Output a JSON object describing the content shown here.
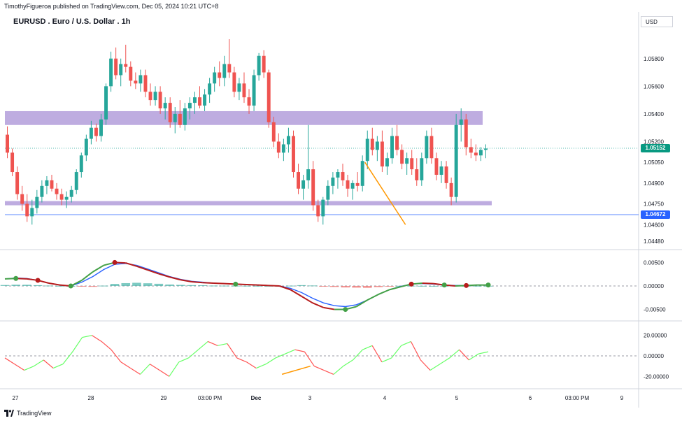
{
  "header": {
    "published": "TimothyFigueroa published on TradingView.com, Dec 05, 2024 10:21 UTC+8",
    "title": "EURUSD . Euro / U.S. Dollar . 1h",
    "currency": "USD"
  },
  "price_axis": [
    "1.05800",
    "1.05600",
    "1.05400",
    "1.05200",
    "1.05050",
    "1.04900",
    "1.04750",
    "1.04600",
    "1.04480"
  ],
  "price_tags": {
    "last": "1.05152",
    "support": "1.04672",
    "last_color": "#089981",
    "support_color": "#2962ff"
  },
  "macd_axis": [
    "0.00500",
    "0.00000",
    "-0.00500"
  ],
  "osc_axis": [
    "20.00000",
    "0.00000",
    "-20.00000"
  ],
  "time_axis": [
    "27",
    "28",
    "29",
    "03:00 PM",
    "Dec",
    "3",
    "4",
    "5",
    "6",
    "03:00 PM",
    "9"
  ],
  "footer": {
    "brand": "TradingView"
  },
  "colors": {
    "up": "#26a69a",
    "down": "#ef5350",
    "zone": "#b39ddb",
    "macd_line": "#2962ff",
    "signal_up": "#43a047",
    "signal_down": "#b71c1c",
    "osc_up": "#66ff66",
    "osc_down": "#ff5252",
    "annotation": "#ff9800"
  },
  "chart_data": {
    "type": "candlestick",
    "symbol": "EURUSD",
    "timeframe": "1h",
    "ylim": [
      1.0448,
      1.0592
    ],
    "candles": [
      [
        1.0525,
        1.0531,
        1.0508,
        1.0512
      ],
      [
        1.0512,
        1.0515,
        1.0495,
        1.0498
      ],
      [
        1.0498,
        1.0502,
        1.0478,
        1.0482
      ],
      [
        1.0482,
        1.0488,
        1.047,
        1.0475
      ],
      [
        1.0475,
        1.0482,
        1.0462,
        1.0466
      ],
      [
        1.0466,
        1.0478,
        1.046,
        1.0472
      ],
      [
        1.0472,
        1.0485,
        1.0468,
        1.048
      ],
      [
        1.048,
        1.0492,
        1.0476,
        1.0488
      ],
      [
        1.0488,
        1.0495,
        1.0482,
        1.0492
      ],
      [
        1.0492,
        1.0496,
        1.0484,
        1.0486
      ],
      [
        1.0486,
        1.049,
        1.0478,
        1.0482
      ],
      [
        1.0482,
        1.0486,
        1.0474,
        1.0478
      ],
      [
        1.0478,
        1.0484,
        1.0472,
        1.048
      ],
      [
        1.048,
        1.0488,
        1.0476,
        1.0485
      ],
      [
        1.0485,
        1.05,
        1.0482,
        1.0498
      ],
      [
        1.0498,
        1.0512,
        1.0494,
        1.051
      ],
      [
        1.051,
        1.0525,
        1.0506,
        1.0522
      ],
      [
        1.0522,
        1.0535,
        1.0518,
        1.053
      ],
      [
        1.053,
        1.0533,
        1.052,
        1.0524
      ],
      [
        1.0524,
        1.054,
        1.052,
        1.0536
      ],
      [
        1.0536,
        1.0562,
        1.0532,
        1.056
      ],
      [
        1.056,
        1.0585,
        1.0556,
        1.058
      ],
      [
        1.058,
        1.0588,
        1.0565,
        1.0568
      ],
      [
        1.0568,
        1.058,
        1.056,
        1.0576
      ],
      [
        1.0576,
        1.059,
        1.057,
        1.0574
      ],
      [
        1.0574,
        1.0578,
        1.056,
        1.0564
      ],
      [
        1.0564,
        1.057,
        1.0558,
        1.0562
      ],
      [
        1.0562,
        1.0572,
        1.0556,
        1.0568
      ],
      [
        1.0568,
        1.0572,
        1.0552,
        1.0556
      ],
      [
        1.0556,
        1.0562,
        1.0546,
        1.055
      ],
      [
        1.055,
        1.056,
        1.0546,
        1.0556
      ],
      [
        1.0556,
        1.056,
        1.054,
        1.0544
      ],
      [
        1.0544,
        1.0552,
        1.0536,
        1.0548
      ],
      [
        1.0548,
        1.0552,
        1.053,
        1.0534
      ],
      [
        1.0534,
        1.0545,
        1.0526,
        1.054
      ],
      [
        1.054,
        1.055,
        1.053,
        1.0532
      ],
      [
        1.0532,
        1.0548,
        1.0528,
        1.0544
      ],
      [
        1.0544,
        1.0552,
        1.0536,
        1.0548
      ],
      [
        1.0548,
        1.0556,
        1.054,
        1.0552
      ],
      [
        1.0552,
        1.056,
        1.0544,
        1.0546
      ],
      [
        1.0546,
        1.0558,
        1.0542,
        1.0554
      ],
      [
        1.0554,
        1.0566,
        1.0548,
        1.0562
      ],
      [
        1.0562,
        1.0574,
        1.0556,
        1.057
      ],
      [
        1.057,
        1.0578,
        1.056,
        1.0566
      ],
      [
        1.0566,
        1.0582,
        1.056,
        1.0576
      ],
      [
        1.0576,
        1.0594,
        1.0566,
        1.057
      ],
      [
        1.057,
        1.0574,
        1.0552,
        1.0556
      ],
      [
        1.0556,
        1.0566,
        1.055,
        1.0562
      ],
      [
        1.0562,
        1.057,
        1.0548,
        1.0552
      ],
      [
        1.0552,
        1.0558,
        1.054,
        1.0546
      ],
      [
        1.0546,
        1.0572,
        1.0542,
        1.0568
      ],
      [
        1.0568,
        1.0584,
        1.0564,
        1.0582
      ],
      [
        1.0582,
        1.0586,
        1.0566,
        1.057
      ],
      [
        1.057,
        1.0572,
        1.053,
        1.0534
      ],
      [
        1.0534,
        1.0538,
        1.0516,
        1.052
      ],
      [
        1.052,
        1.0526,
        1.0508,
        1.0512
      ],
      [
        1.0512,
        1.0522,
        1.0506,
        1.0518
      ],
      [
        1.0518,
        1.053,
        1.0512,
        1.0524
      ],
      [
        1.0524,
        1.0528,
        1.0494,
        1.0498
      ],
      [
        1.0498,
        1.0504,
        1.0482,
        1.0486
      ],
      [
        1.0486,
        1.0496,
        1.0478,
        1.0492
      ],
      [
        1.0492,
        1.0532,
        1.0486,
        1.05
      ],
      [
        1.05,
        1.0506,
        1.047,
        1.0474
      ],
      [
        1.0474,
        1.0478,
        1.0462,
        1.0466
      ],
      [
        1.0466,
        1.048,
        1.046,
        1.0478
      ],
      [
        1.0478,
        1.0492,
        1.0474,
        1.0488
      ],
      [
        1.0488,
        1.0498,
        1.0482,
        1.0494
      ],
      [
        1.0494,
        1.05,
        1.0486,
        1.0498
      ],
      [
        1.0498,
        1.0504,
        1.0488,
        1.0492
      ],
      [
        1.0492,
        1.0496,
        1.048,
        1.0486
      ],
      [
        1.0486,
        1.0492,
        1.0478,
        1.049
      ],
      [
        1.049,
        1.0498,
        1.0484,
        1.0488
      ],
      [
        1.0488,
        1.051,
        1.0484,
        1.0506
      ],
      [
        1.0506,
        1.0528,
        1.05,
        1.0522
      ],
      [
        1.0522,
        1.053,
        1.051,
        1.0514
      ],
      [
        1.0514,
        1.0524,
        1.0506,
        1.052
      ],
      [
        1.052,
        1.0528,
        1.0498,
        1.0502
      ],
      [
        1.0502,
        1.0512,
        1.0496,
        1.0508
      ],
      [
        1.0508,
        1.053,
        1.0504,
        1.0524
      ],
      [
        1.0524,
        1.0532,
        1.051,
        1.0514
      ],
      [
        1.0514,
        1.0518,
        1.05,
        1.0504
      ],
      [
        1.0504,
        1.0512,
        1.0496,
        1.0508
      ],
      [
        1.0508,
        1.0514,
        1.0496,
        1.05
      ],
      [
        1.05,
        1.0508,
        1.0488,
        1.0492
      ],
      [
        1.0492,
        1.0512,
        1.0488,
        1.0508
      ],
      [
        1.0508,
        1.0528,
        1.0504,
        1.0524
      ],
      [
        1.0524,
        1.053,
        1.0504,
        1.0508
      ],
      [
        1.0508,
        1.0512,
        1.0492,
        1.0496
      ],
      [
        1.0496,
        1.0506,
        1.049,
        1.0502
      ],
      [
        1.0502,
        1.0506,
        1.0486,
        1.049
      ],
      [
        1.049,
        1.0494,
        1.0474,
        1.048
      ],
      [
        1.048,
        1.054,
        1.0476,
        1.0532
      ],
      [
        1.0532,
        1.0544,
        1.052,
        1.0536
      ],
      [
        1.0536,
        1.054,
        1.051,
        1.0516
      ],
      [
        1.0516,
        1.0522,
        1.0508,
        1.0512
      ],
      [
        1.0512,
        1.0518,
        1.0506,
        1.051
      ],
      [
        1.051,
        1.0516,
        1.0506,
        1.0514
      ],
      [
        1.0514,
        1.0518,
        1.0508,
        1.0515
      ]
    ],
    "zones": [
      {
        "from": 1.0532,
        "to": 1.0542
      },
      {
        "from": 1.0474,
        "to": 1.0477
      }
    ],
    "support_line": 1.04672,
    "last_price": 1.05152,
    "macd": {
      "ylim": [
        -0.007,
        0.007
      ],
      "line": [
        0.0015,
        0.0017,
        0.0016,
        0.0012,
        0.0006,
        0.0002,
        0.0,
        0.0008,
        0.002,
        0.0035,
        0.0046,
        0.0048,
        0.0044,
        0.0036,
        0.0028,
        0.002,
        0.0014,
        0.001,
        0.0008,
        0.0006,
        0.0005,
        0.0004,
        0.0003,
        0.0002,
        0.0001,
        0.0,
        -0.0005,
        -0.0014,
        -0.0026,
        -0.0036,
        -0.0042,
        -0.0044,
        -0.004,
        -0.003,
        -0.0018,
        -0.0008,
        -0.0001,
        0.0004,
        0.0005,
        0.0004,
        0.0002,
        0.0001,
        0.0001,
        0.0002,
        0.0002
      ],
      "signal": [
        0.0015,
        0.0016,
        0.0015,
        0.0012,
        0.0006,
        0.0002,
        0.0,
        0.0012,
        0.003,
        0.0044,
        0.005,
        0.0049,
        0.0042,
        0.0034,
        0.0026,
        0.0019,
        0.0013,
        0.0009,
        0.0007,
        0.0006,
        0.0005,
        0.0004,
        0.0003,
        0.0002,
        0.0001,
        0.0,
        -0.0008,
        -0.0022,
        -0.0036,
        -0.0046,
        -0.005,
        -0.005,
        -0.0044,
        -0.003,
        -0.0018,
        -0.0008,
        -0.0002,
        0.0004,
        0.0006,
        0.0005,
        0.0002,
        0.0,
        0.0001,
        0.0002,
        0.0002
      ]
    },
    "oscillator": {
      "ylim": [
        -30,
        30
      ],
      "values": [
        -2,
        -8,
        -14,
        -10,
        -4,
        -12,
        -8,
        4,
        18,
        20,
        14,
        6,
        -6,
        -12,
        -18,
        -8,
        -14,
        -20,
        -6,
        -2,
        6,
        14,
        10,
        12,
        -2,
        -6,
        -12,
        -8,
        -2,
        2,
        6,
        4,
        -10,
        -14,
        -18,
        -10,
        -4,
        6,
        10,
        -6,
        -2,
        10,
        14,
        -4,
        -14,
        -8,
        -2,
        6,
        -4,
        2,
        4
      ],
      "trend_line": [
        [
          0.52,
          -18
        ],
        [
          0.62,
          -10
        ]
      ]
    },
    "drawn_trendline": [
      [
        0.535,
        1.0505
      ],
      [
        0.61,
        1.046
      ]
    ]
  }
}
